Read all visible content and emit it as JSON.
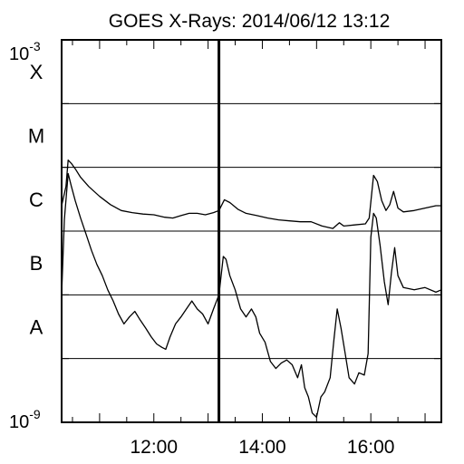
{
  "chart_data": {
    "type": "line",
    "title": "GOES X-Rays: 2014/06/12 13:12",
    "y_scale": "log",
    "ylim": [
      1e-09,
      0.001
    ],
    "y_ticks": [
      {
        "label_base": "10",
        "label_exp": "-3",
        "value": 0.001
      },
      {
        "label_base": "10",
        "label_exp": "-9",
        "value": 1e-09
      }
    ],
    "class_labels": [
      {
        "label": "X",
        "value": 0.0001
      },
      {
        "label": "M",
        "value": 1e-05
      },
      {
        "label": "C",
        "value": 1e-06
      },
      {
        "label": "B",
        "value": 1e-07
      },
      {
        "label": "A",
        "value": 1e-08
      }
    ],
    "x_unit": "hour",
    "xlim": [
      10.3,
      17.3
    ],
    "x_ticks": [
      {
        "label": "12:00",
        "value": 12
      },
      {
        "label": "14:00",
        "value": 14
      },
      {
        "label": "16:00",
        "value": 16
      }
    ],
    "marker_time": 13.2,
    "grid_horizontal": true,
    "series": [
      {
        "points": [
          [
            10.3,
            2.5e-06
          ],
          [
            10.38,
            5e-06
          ],
          [
            10.42,
            1.3e-05
          ],
          [
            10.48,
            1.15e-05
          ],
          [
            10.55,
            9.5e-06
          ],
          [
            10.65,
            7e-06
          ],
          [
            10.8,
            5e-06
          ],
          [
            11.0,
            3.5e-06
          ],
          [
            11.2,
            2.6e-06
          ],
          [
            11.4,
            2.1e-06
          ],
          [
            11.6,
            1.95e-06
          ],
          [
            11.8,
            1.85e-06
          ],
          [
            12.0,
            1.8e-06
          ],
          [
            12.2,
            1.65e-06
          ],
          [
            12.35,
            1.6e-06
          ],
          [
            12.5,
            1.75e-06
          ],
          [
            12.65,
            1.9e-06
          ],
          [
            12.8,
            1.9e-06
          ],
          [
            12.95,
            1.8e-06
          ],
          [
            13.1,
            1.95e-06
          ],
          [
            13.2,
            2.1e-06
          ],
          [
            13.3,
            3.1e-06
          ],
          [
            13.4,
            2.8e-06
          ],
          [
            13.55,
            2.2e-06
          ],
          [
            13.7,
            1.9e-06
          ],
          [
            13.9,
            1.75e-06
          ],
          [
            14.1,
            1.6e-06
          ],
          [
            14.3,
            1.5e-06
          ],
          [
            14.5,
            1.45e-06
          ],
          [
            14.7,
            1.4e-06
          ],
          [
            14.9,
            1.4e-06
          ],
          [
            15.1,
            1.2e-06
          ],
          [
            15.3,
            1.1e-06
          ],
          [
            15.42,
            1.35e-06
          ],
          [
            15.5,
            1.2e-06
          ],
          [
            15.7,
            1.25e-06
          ],
          [
            15.9,
            1.3e-06
          ],
          [
            15.97,
            1.6e-06
          ],
          [
            16.05,
            7.5e-06
          ],
          [
            16.12,
            6e-06
          ],
          [
            16.2,
            3e-06
          ],
          [
            16.28,
            2.1e-06
          ],
          [
            16.35,
            2.6e-06
          ],
          [
            16.42,
            4.2e-06
          ],
          [
            16.5,
            2.3e-06
          ],
          [
            16.6,
            2e-06
          ],
          [
            16.8,
            2.1e-06
          ],
          [
            17.0,
            2.3e-06
          ],
          [
            17.2,
            2.5e-06
          ],
          [
            17.3,
            2.5e-06
          ]
        ]
      },
      {
        "points": [
          [
            10.3,
            1e-07
          ],
          [
            10.35,
            1.5e-06
          ],
          [
            10.42,
            8e-06
          ],
          [
            10.48,
            5e-06
          ],
          [
            10.55,
            3e-06
          ],
          [
            10.65,
            1.6e-06
          ],
          [
            10.75,
            9e-07
          ],
          [
            10.85,
            5e-07
          ],
          [
            10.95,
            3e-07
          ],
          [
            11.05,
            2e-07
          ],
          [
            11.15,
            1.2e-07
          ],
          [
            11.25,
            8e-08
          ],
          [
            11.35,
            5e-08
          ],
          [
            11.45,
            3.5e-08
          ],
          [
            11.55,
            4.5e-08
          ],
          [
            11.65,
            5.5e-08
          ],
          [
            11.75,
            4e-08
          ],
          [
            11.85,
            3e-08
          ],
          [
            11.95,
            2.2e-08
          ],
          [
            12.05,
            1.7e-08
          ],
          [
            12.15,
            1.5e-08
          ],
          [
            12.22,
            1.4e-08
          ],
          [
            12.3,
            2.2e-08
          ],
          [
            12.4,
            3.5e-08
          ],
          [
            12.5,
            4.5e-08
          ],
          [
            12.6,
            6e-08
          ],
          [
            12.7,
            8e-08
          ],
          [
            12.8,
            6e-08
          ],
          [
            12.9,
            5e-08
          ],
          [
            13.0,
            3.5e-08
          ],
          [
            13.1,
            6e-08
          ],
          [
            13.2,
            1e-07
          ],
          [
            13.28,
            4e-07
          ],
          [
            13.33,
            3.6e-07
          ],
          [
            13.4,
            2e-07
          ],
          [
            13.5,
            1.2e-07
          ],
          [
            13.6,
            6e-08
          ],
          [
            13.7,
            4.5e-08
          ],
          [
            13.8,
            6e-08
          ],
          [
            13.88,
            4.5e-08
          ],
          [
            13.95,
            2.5e-08
          ],
          [
            14.05,
            1.8e-08
          ],
          [
            14.15,
            9e-09
          ],
          [
            14.25,
            7e-09
          ],
          [
            14.35,
            8.5e-09
          ],
          [
            14.45,
            9.5e-09
          ],
          [
            14.55,
            8e-09
          ],
          [
            14.65,
            5e-09
          ],
          [
            14.72,
            8e-09
          ],
          [
            14.78,
            3.5e-09
          ],
          [
            14.85,
            2.5e-09
          ],
          [
            14.92,
            1.4e-09
          ],
          [
            15.0,
            1.2e-09
          ],
          [
            15.08,
            2.5e-09
          ],
          [
            15.15,
            3e-09
          ],
          [
            15.25,
            5e-09
          ],
          [
            15.32,
            2e-08
          ],
          [
            15.38,
            6e-08
          ],
          [
            15.45,
            3e-08
          ],
          [
            15.52,
            1.3e-08
          ],
          [
            15.6,
            5e-09
          ],
          [
            15.7,
            4e-09
          ],
          [
            15.78,
            6e-09
          ],
          [
            15.88,
            5.5e-09
          ],
          [
            15.95,
            1.2e-08
          ],
          [
            16.0,
            8e-07
          ],
          [
            16.05,
            1.9e-06
          ],
          [
            16.1,
            1.6e-06
          ],
          [
            16.17,
            6e-07
          ],
          [
            16.25,
            1.6e-07
          ],
          [
            16.32,
            7e-08
          ],
          [
            16.38,
            2.2e-07
          ],
          [
            16.44,
            5.5e-07
          ],
          [
            16.5,
            2e-07
          ],
          [
            16.6,
            1.3e-07
          ],
          [
            16.8,
            1.2e-07
          ],
          [
            17.0,
            1.3e-07
          ],
          [
            17.2,
            1.1e-07
          ],
          [
            17.3,
            1.2e-07
          ]
        ]
      }
    ]
  }
}
